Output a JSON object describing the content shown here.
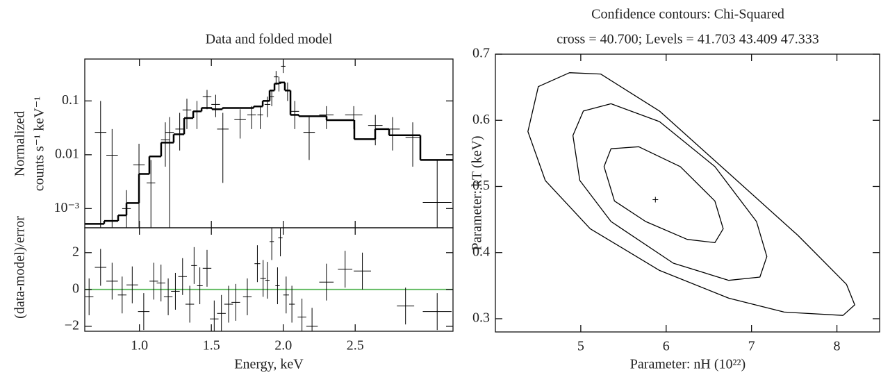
{
  "chart_data": [
    {
      "type": "errorbar",
      "title": "Data and folded model",
      "ylabel": [
        "Normalized",
        "counts s⁻¹ keV⁻¹"
      ],
      "ylog": true,
      "xlim": [
        0.62,
        3.18
      ],
      "ylim": [
        0.00044,
        0.6
      ],
      "yticks": [
        0.1,
        0.01,
        {
          "value": 0.001,
          "label": "10⁻³"
        }
      ],
      "model": {
        "color": "#000000",
        "edges": [
          0.62,
          0.755,
          0.852,
          0.91,
          0.997,
          1.069,
          1.151,
          1.238,
          1.311,
          1.374,
          1.432,
          1.504,
          1.577,
          1.697,
          1.794,
          1.857,
          1.905,
          1.939,
          1.973,
          2.011,
          2.05,
          2.108,
          2.301,
          2.494,
          2.639,
          2.736,
          2.953,
          3.18
        ],
        "values": [
          0.00052,
          0.00059,
          0.00075,
          0.00127,
          0.0044,
          0.0093,
          0.0168,
          0.024,
          0.048,
          0.064,
          0.074,
          0.07,
          0.074,
          0.074,
          0.079,
          0.1,
          0.156,
          0.21,
          0.22,
          0.156,
          0.055,
          0.052,
          0.044,
          0.0195,
          0.03,
          0.023,
          0.008
        ]
      },
      "points": {
        "color": "#000000",
        "x": [
          0.73,
          0.81,
          0.91,
          0.997,
          1.08,
          1.18,
          1.21,
          1.28,
          1.33,
          1.4,
          1.47,
          1.53,
          1.58,
          1.7,
          1.78,
          1.84,
          1.89,
          1.92,
          1.95,
          1.97,
          2.0,
          2.03,
          2.08,
          2.18,
          2.3,
          2.49,
          2.64,
          2.76,
          2.9,
          3.07
        ],
        "xerr": [
          0.04,
          0.04,
          0.03,
          0.04,
          0.03,
          0.03,
          0.03,
          0.03,
          0.03,
          0.03,
          0.03,
          0.03,
          0.04,
          0.04,
          0.03,
          0.02,
          0.02,
          0.015,
          0.015,
          0.015,
          0.015,
          0.015,
          0.03,
          0.04,
          0.05,
          0.06,
          0.05,
          0.05,
          0.05,
          0.1
        ],
        "y": [
          0.026,
          0.0098,
          0.001,
          0.0065,
          0.003,
          0.019,
          0.026,
          0.03,
          0.068,
          0.064,
          0.12,
          0.086,
          0.03,
          0.045,
          0.055,
          0.055,
          0.086,
          0.12,
          0.28,
          0.21,
          0.44,
          0.16,
          0.064,
          0.026,
          0.055,
          0.055,
          0.035,
          0.03,
          0.021,
          0.0013
        ],
        "ylow": [
          0.0003,
          0.0003,
          0.0003,
          0.0003,
          0.0003,
          0.006,
          0.0003,
          0.012,
          0.03,
          0.03,
          0.07,
          0.05,
          0.003,
          0.02,
          0.03,
          0.03,
          0.05,
          0.08,
          0.2,
          0.15,
          0.33,
          0.1,
          0.03,
          0.008,
          0.03,
          0.03,
          0.015,
          0.012,
          0.006,
          0.0003
        ],
        "yhigh": [
          0.1,
          0.03,
          0.0022,
          0.016,
          0.008,
          0.04,
          0.05,
          0.06,
          0.11,
          0.1,
          0.16,
          0.13,
          0.06,
          0.07,
          0.08,
          0.08,
          0.12,
          0.16,
          0.36,
          0.28,
          0.55,
          0.22,
          0.1,
          0.05,
          0.08,
          0.08,
          0.055,
          0.05,
          0.04,
          0.008
        ]
      }
    },
    {
      "type": "errorbar",
      "ylabel": "(data-model)/error",
      "xlabel": "Energy, keV",
      "xlim": [
        0.62,
        3.18
      ],
      "ylim": [
        -2.27,
        3.35
      ],
      "xticks": [
        {
          "value": 1,
          "label": "1.0"
        },
        1.5,
        {
          "value": 2,
          "label": "2.0"
        },
        2.5
      ],
      "yticks": [
        2,
        0,
        {
          "value": -2,
          "label": "−2"
        }
      ],
      "zero_line": {
        "value": 0,
        "color": "#5cb85c"
      },
      "points": {
        "color": "#000000",
        "x": [
          0.65,
          0.73,
          0.81,
          0.88,
          0.95,
          1.03,
          1.1,
          1.15,
          1.2,
          1.25,
          1.3,
          1.35,
          1.38,
          1.42,
          1.47,
          1.52,
          1.57,
          1.62,
          1.67,
          1.75,
          1.82,
          1.86,
          1.89,
          1.92,
          1.96,
          1.98,
          2.02,
          2.06,
          2.13,
          2.2,
          2.3,
          2.43,
          2.55,
          2.85,
          3.07
        ],
        "xerr": [
          0.03,
          0.04,
          0.04,
          0.03,
          0.04,
          0.04,
          0.03,
          0.03,
          0.03,
          0.03,
          0.03,
          0.03,
          0.02,
          0.02,
          0.03,
          0.03,
          0.03,
          0.03,
          0.03,
          0.03,
          0.02,
          0.02,
          0.015,
          0.015,
          0.015,
          0.015,
          0.02,
          0.02,
          0.03,
          0.04,
          0.05,
          0.05,
          0.06,
          0.06,
          0.1
        ],
        "y": [
          -0.4,
          1.2,
          0.45,
          -0.3,
          0.25,
          -1.2,
          0.45,
          0.35,
          -0.4,
          -0.1,
          0.7,
          -0.8,
          1.3,
          0.2,
          1.15,
          -1.6,
          -1.3,
          -0.8,
          -0.7,
          -0.4,
          1.4,
          0.6,
          0.5,
          2.6,
          0.2,
          2.8,
          -0.3,
          -0.8,
          -1.5,
          -2.0,
          0.4,
          1.1,
          1.0,
          -0.9,
          -1.2
        ],
        "yerr": [
          1,
          1,
          1,
          1,
          1,
          1,
          1,
          1,
          1,
          1,
          1,
          1,
          1,
          1,
          1,
          1,
          1,
          1,
          1,
          1,
          1,
          1,
          1,
          1,
          1,
          1,
          1,
          1,
          1,
          1,
          1,
          1,
          1,
          1,
          1
        ]
      }
    },
    {
      "type": "contour",
      "title": [
        "Confidence contours: Chi-Squared",
        "cross = 40.700; Levels = 41.703 43.409 47.333"
      ],
      "xlabel": "Parameter: nH (10²²)",
      "ylabel": "Parameter: kT (keV)",
      "xlim": [
        4.0,
        8.5
      ],
      "ylim": [
        0.28,
        0.7
      ],
      "xticks": [
        5,
        6,
        7,
        8
      ],
      "yticks": [
        0.3,
        0.4,
        0.5,
        0.6,
        0.7
      ],
      "color": "#000000",
      "contours": [
        {
          "x": [
            5.273,
            5.354,
            5.679,
            6.165,
            6.571,
            6.668,
            6.571,
            6.246,
            5.76,
            5.395
          ],
          "y": [
            0.53,
            0.557,
            0.56,
            0.53,
            0.478,
            0.436,
            0.415,
            0.42,
            0.447,
            0.478
          ]
        },
        {
          "x": [
            4.908,
            5.03,
            5.354,
            5.922,
            6.571,
            7.058,
            7.179,
            7.098,
            6.733,
            6.084,
            5.354,
            4.989
          ],
          "y": [
            0.577,
            0.614,
            0.625,
            0.598,
            0.53,
            0.447,
            0.394,
            0.363,
            0.358,
            0.384,
            0.447,
            0.509
          ]
        },
        {
          "x": [
            4.381,
            4.503,
            4.868,
            5.233,
            5.922,
            6.733,
            7.544,
            8.112,
            8.209,
            8.071,
            7.382,
            6.733,
            5.922,
            5.111,
            4.584
          ],
          "y": [
            0.583,
            0.651,
            0.672,
            0.67,
            0.614,
            0.52,
            0.426,
            0.352,
            0.321,
            0.305,
            0.31,
            0.331,
            0.373,
            0.436,
            0.509
          ]
        }
      ],
      "cross": {
        "x": 5.874,
        "y": 0.48
      }
    }
  ]
}
